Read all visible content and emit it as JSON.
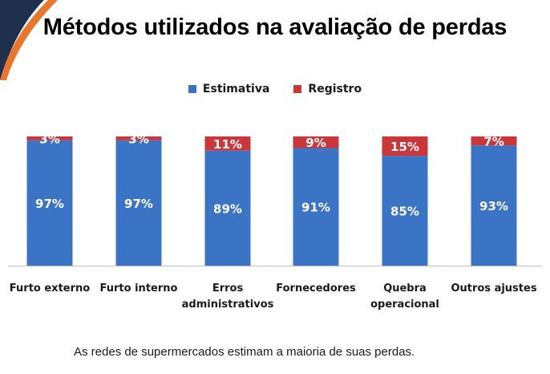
{
  "page": {
    "title": "Métodos utilizados na avaliação de perdas",
    "footnote": "As redes de supermercados estimam a maioria de suas perdas."
  },
  "colors": {
    "estimativa": "#3b74c4",
    "registro": "#c9373a",
    "accent_orange": "#e8772e",
    "accent_navy": "#1f2f4d"
  },
  "chart_data": {
    "type": "bar",
    "stacked": true,
    "percent_stacked": true,
    "categories": [
      [
        "Furto externo"
      ],
      [
        "Furto interno"
      ],
      [
        "Erros",
        "administrativos"
      ],
      [
        "Fornecedores"
      ],
      [
        "Quebra",
        "operacional"
      ],
      [
        "Outros ajustes"
      ]
    ],
    "series": [
      {
        "name": "Estimativa",
        "values": [
          97,
          97,
          89,
          91,
          85,
          93
        ],
        "labels": [
          "97%",
          "97%",
          "89%",
          "91%",
          "85%",
          "93%"
        ]
      },
      {
        "name": "Registro",
        "values": [
          3,
          3,
          11,
          9,
          15,
          7
        ],
        "labels": [
          "3%",
          "3%",
          "11%",
          "9%",
          "15%",
          "7%"
        ]
      }
    ],
    "ylim": [
      0,
      100
    ],
    "legend_position": "top-center",
    "grid": false
  }
}
